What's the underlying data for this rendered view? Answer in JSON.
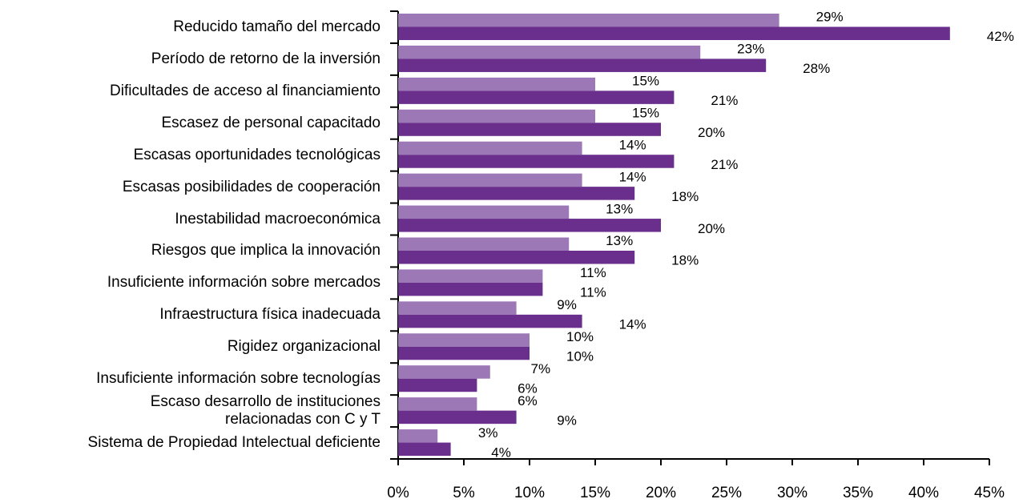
{
  "chart_data": {
    "type": "bar",
    "orientation": "horizontal",
    "categories": [
      "Reducido tamaño del mercado",
      "Período de retorno de la inversión",
      "Dificultades de acceso al financiamiento",
      "Escasez de personal capacitado",
      "Escasas oportunidades tecnológicas",
      "Escasas posibilidades de cooperación",
      "Inestabilidad macroeconómica",
      "Riesgos que implica la innovación",
      "Insuficiente información sobre mercados",
      "Infraestructura física inadecuada",
      "Rigidez organizacional",
      "Insuficiente información sobre tecnologías",
      "Escaso desarrollo de instituciones\nrelacionadas con C y T",
      "Sistema de Propiedad Intelectual deficiente"
    ],
    "series": [
      {
        "color": "#9c79b6",
        "values": [
          29,
          23,
          15,
          15,
          14,
          14,
          13,
          13,
          11,
          9,
          10,
          7,
          6,
          3
        ],
        "value_labels": [
          "29%",
          "23%",
          "15%",
          "15%",
          "14%",
          "14%",
          "13%",
          "13%",
          "11%",
          "9%",
          "10%",
          "7%",
          "6%",
          "3%"
        ]
      },
      {
        "color": "#6a2e8c",
        "values": [
          42,
          28,
          21,
          20,
          21,
          18,
          20,
          18,
          11,
          14,
          10,
          6,
          9,
          4
        ],
        "value_labels": [
          "42%",
          "28%",
          "21%",
          "20%",
          "21%",
          "18%",
          "20%",
          "18%",
          "11%",
          "14%",
          "10%",
          "6%",
          "9%",
          "4%"
        ]
      }
    ],
    "xlim": [
      0,
      45
    ],
    "xticks": [
      {
        "value": 0,
        "label": "0%"
      },
      {
        "value": 5,
        "label": "5%"
      },
      {
        "value": 10,
        "label": "10%"
      },
      {
        "value": 15,
        "label": "15%"
      },
      {
        "value": 20,
        "label": "20%"
      },
      {
        "value": 25,
        "label": "25%"
      },
      {
        "value": 30,
        "label": "30%"
      },
      {
        "value": 35,
        "label": "35%"
      },
      {
        "value": 40,
        "label": "40%"
      },
      {
        "value": 45,
        "label": "45%"
      }
    ],
    "grid": false
  }
}
